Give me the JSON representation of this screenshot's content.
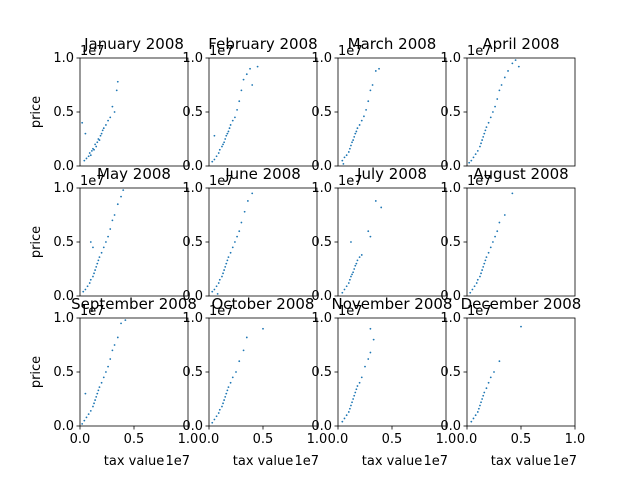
{
  "chart_data": {
    "type": "scatter",
    "layout": "3x4 small multiples",
    "point_color": "#1f77b4",
    "axis_ranges": {
      "xlim": [
        0,
        1
      ],
      "ylim": [
        0,
        1
      ],
      "scale_factor_label": "1e7"
    },
    "xticks": [
      "0.0",
      "0.5",
      "1.0"
    ],
    "yticks": [
      "0.0",
      "0.5",
      "1.0"
    ],
    "xlabel": "tax value",
    "ylabel": "price",
    "grid": false,
    "legend": "none",
    "panels": [
      {
        "title": "January 2008",
        "points": [
          [
            0.04,
            0.05
          ],
          [
            0.06,
            0.07
          ],
          [
            0.08,
            0.09
          ],
          [
            0.09,
            0.12
          ],
          [
            0.1,
            0.1
          ],
          [
            0.11,
            0.14
          ],
          [
            0.12,
            0.16
          ],
          [
            0.13,
            0.15
          ],
          [
            0.14,
            0.2
          ],
          [
            0.15,
            0.18
          ],
          [
            0.16,
            0.22
          ],
          [
            0.17,
            0.25
          ],
          [
            0.18,
            0.24
          ],
          [
            0.19,
            0.28
          ],
          [
            0.2,
            0.3
          ],
          [
            0.21,
            0.33
          ],
          [
            0.22,
            0.35
          ],
          [
            0.24,
            0.38
          ],
          [
            0.26,
            0.42
          ],
          [
            0.28,
            0.45
          ],
          [
            0.3,
            0.55
          ],
          [
            0.32,
            0.5
          ],
          [
            0.34,
            0.7
          ],
          [
            0.35,
            0.78
          ],
          [
            0.02,
            0.4
          ],
          [
            0.05,
            0.3
          ]
        ]
      },
      {
        "title": "February 2008",
        "points": [
          [
            0.03,
            0.04
          ],
          [
            0.05,
            0.06
          ],
          [
            0.07,
            0.09
          ],
          [
            0.09,
            0.12
          ],
          [
            0.1,
            0.15
          ],
          [
            0.12,
            0.18
          ],
          [
            0.13,
            0.2
          ],
          [
            0.14,
            0.22
          ],
          [
            0.15,
            0.25
          ],
          [
            0.16,
            0.28
          ],
          [
            0.17,
            0.3
          ],
          [
            0.18,
            0.32
          ],
          [
            0.19,
            0.35
          ],
          [
            0.2,
            0.38
          ],
          [
            0.22,
            0.42
          ],
          [
            0.24,
            0.45
          ],
          [
            0.26,
            0.52
          ],
          [
            0.28,
            0.6
          ],
          [
            0.3,
            0.7
          ],
          [
            0.32,
            0.8
          ],
          [
            0.35,
            0.85
          ],
          [
            0.38,
            0.9
          ],
          [
            0.4,
            0.75
          ],
          [
            0.45,
            0.92
          ],
          [
            0.05,
            0.28
          ]
        ]
      },
      {
        "title": "March 2008",
        "points": [
          [
            0.04,
            0.05
          ],
          [
            0.06,
            0.08
          ],
          [
            0.08,
            0.1
          ],
          [
            0.1,
            0.13
          ],
          [
            0.11,
            0.16
          ],
          [
            0.12,
            0.19
          ],
          [
            0.13,
            0.22
          ],
          [
            0.14,
            0.24
          ],
          [
            0.15,
            0.27
          ],
          [
            0.16,
            0.3
          ],
          [
            0.17,
            0.32
          ],
          [
            0.18,
            0.35
          ],
          [
            0.2,
            0.38
          ],
          [
            0.22,
            0.42
          ],
          [
            0.24,
            0.46
          ],
          [
            0.26,
            0.52
          ],
          [
            0.28,
            0.6
          ],
          [
            0.3,
            0.7
          ],
          [
            0.32,
            0.75
          ],
          [
            0.35,
            0.88
          ],
          [
            0.38,
            0.9
          ],
          [
            0.05,
            0.02
          ]
        ]
      },
      {
        "title": "April 2008",
        "points": [
          [
            0.02,
            0.03
          ],
          [
            0.04,
            0.05
          ],
          [
            0.06,
            0.08
          ],
          [
            0.08,
            0.11
          ],
          [
            0.1,
            0.14
          ],
          [
            0.12,
            0.18
          ],
          [
            0.13,
            0.21
          ],
          [
            0.14,
            0.24
          ],
          [
            0.15,
            0.27
          ],
          [
            0.16,
            0.3
          ],
          [
            0.17,
            0.33
          ],
          [
            0.18,
            0.36
          ],
          [
            0.2,
            0.4
          ],
          [
            0.22,
            0.45
          ],
          [
            0.24,
            0.5
          ],
          [
            0.26,
            0.55
          ],
          [
            0.28,
            0.62
          ],
          [
            0.3,
            0.7
          ],
          [
            0.32,
            0.75
          ],
          [
            0.35,
            0.82
          ],
          [
            0.38,
            0.88
          ],
          [
            0.42,
            0.95
          ],
          [
            0.45,
            0.98
          ],
          [
            0.48,
            0.92
          ]
        ]
      },
      {
        "title": "May 2008",
        "points": [
          [
            0.03,
            0.04
          ],
          [
            0.05,
            0.06
          ],
          [
            0.07,
            0.09
          ],
          [
            0.09,
            0.12
          ],
          [
            0.1,
            0.15
          ],
          [
            0.12,
            0.18
          ],
          [
            0.13,
            0.21
          ],
          [
            0.14,
            0.24
          ],
          [
            0.15,
            0.27
          ],
          [
            0.16,
            0.3
          ],
          [
            0.17,
            0.33
          ],
          [
            0.18,
            0.36
          ],
          [
            0.2,
            0.4
          ],
          [
            0.22,
            0.45
          ],
          [
            0.24,
            0.5
          ],
          [
            0.26,
            0.55
          ],
          [
            0.28,
            0.62
          ],
          [
            0.3,
            0.7
          ],
          [
            0.32,
            0.75
          ],
          [
            0.35,
            0.85
          ],
          [
            0.38,
            0.92
          ],
          [
            0.4,
            0.98
          ],
          [
            0.1,
            0.5
          ],
          [
            0.12,
            0.45
          ]
        ]
      },
      {
        "title": "June 2008",
        "points": [
          [
            0.03,
            0.04
          ],
          [
            0.05,
            0.06
          ],
          [
            0.07,
            0.09
          ],
          [
            0.09,
            0.12
          ],
          [
            0.1,
            0.15
          ],
          [
            0.12,
            0.18
          ],
          [
            0.13,
            0.21
          ],
          [
            0.14,
            0.24
          ],
          [
            0.15,
            0.27
          ],
          [
            0.16,
            0.3
          ],
          [
            0.17,
            0.33
          ],
          [
            0.18,
            0.36
          ],
          [
            0.2,
            0.4
          ],
          [
            0.22,
            0.45
          ],
          [
            0.24,
            0.5
          ],
          [
            0.26,
            0.55
          ],
          [
            0.28,
            0.6
          ],
          [
            0.3,
            0.68
          ],
          [
            0.33,
            0.78
          ],
          [
            0.36,
            0.88
          ],
          [
            0.4,
            0.95
          ],
          [
            0.08,
            0.02
          ]
        ]
      },
      {
        "title": "July 2008",
        "points": [
          [
            0.04,
            0.03
          ],
          [
            0.06,
            0.06
          ],
          [
            0.08,
            0.09
          ],
          [
            0.1,
            0.12
          ],
          [
            0.11,
            0.15
          ],
          [
            0.12,
            0.18
          ],
          [
            0.13,
            0.2
          ],
          [
            0.14,
            0.22
          ],
          [
            0.15,
            0.25
          ],
          [
            0.16,
            0.28
          ],
          [
            0.17,
            0.3
          ],
          [
            0.18,
            0.33
          ],
          [
            0.2,
            0.36
          ],
          [
            0.22,
            0.38
          ],
          [
            0.12,
            0.5
          ],
          [
            0.28,
            0.6
          ],
          [
            0.3,
            0.55
          ],
          [
            0.35,
            0.88
          ],
          [
            0.4,
            0.82
          ]
        ]
      },
      {
        "title": "August 2008",
        "points": [
          [
            0.03,
            0.03
          ],
          [
            0.05,
            0.06
          ],
          [
            0.07,
            0.09
          ],
          [
            0.09,
            0.12
          ],
          [
            0.1,
            0.15
          ],
          [
            0.12,
            0.18
          ],
          [
            0.13,
            0.21
          ],
          [
            0.14,
            0.24
          ],
          [
            0.15,
            0.27
          ],
          [
            0.16,
            0.3
          ],
          [
            0.17,
            0.33
          ],
          [
            0.18,
            0.36
          ],
          [
            0.2,
            0.4
          ],
          [
            0.22,
            0.45
          ],
          [
            0.24,
            0.5
          ],
          [
            0.26,
            0.55
          ],
          [
            0.28,
            0.6
          ],
          [
            0.3,
            0.68
          ],
          [
            0.35,
            0.75
          ],
          [
            0.42,
            0.95
          ]
        ]
      },
      {
        "title": "September 2008",
        "points": [
          [
            0.02,
            0.02
          ],
          [
            0.04,
            0.05
          ],
          [
            0.06,
            0.08
          ],
          [
            0.08,
            0.11
          ],
          [
            0.1,
            0.14
          ],
          [
            0.12,
            0.18
          ],
          [
            0.13,
            0.21
          ],
          [
            0.14,
            0.24
          ],
          [
            0.15,
            0.27
          ],
          [
            0.16,
            0.3
          ],
          [
            0.17,
            0.33
          ],
          [
            0.18,
            0.36
          ],
          [
            0.2,
            0.4
          ],
          [
            0.22,
            0.45
          ],
          [
            0.24,
            0.5
          ],
          [
            0.26,
            0.55
          ],
          [
            0.28,
            0.62
          ],
          [
            0.3,
            0.7
          ],
          [
            0.32,
            0.75
          ],
          [
            0.35,
            0.82
          ],
          [
            0.38,
            0.95
          ],
          [
            0.42,
            0.98
          ],
          [
            0.05,
            0.3
          ]
        ]
      },
      {
        "title": "October 2008",
        "points": [
          [
            0.03,
            0.03
          ],
          [
            0.05,
            0.06
          ],
          [
            0.07,
            0.09
          ],
          [
            0.09,
            0.12
          ],
          [
            0.1,
            0.15
          ],
          [
            0.12,
            0.18
          ],
          [
            0.13,
            0.21
          ],
          [
            0.14,
            0.24
          ],
          [
            0.15,
            0.27
          ],
          [
            0.16,
            0.3
          ],
          [
            0.17,
            0.33
          ],
          [
            0.18,
            0.36
          ],
          [
            0.2,
            0.4
          ],
          [
            0.22,
            0.45
          ],
          [
            0.25,
            0.5
          ],
          [
            0.28,
            0.6
          ],
          [
            0.32,
            0.7
          ],
          [
            0.35,
            0.82
          ],
          [
            0.5,
            0.9
          ]
        ]
      },
      {
        "title": "November 2008",
        "points": [
          [
            0.04,
            0.04
          ],
          [
            0.06,
            0.07
          ],
          [
            0.08,
            0.1
          ],
          [
            0.1,
            0.13
          ],
          [
            0.11,
            0.16
          ],
          [
            0.12,
            0.19
          ],
          [
            0.13,
            0.22
          ],
          [
            0.14,
            0.25
          ],
          [
            0.15,
            0.28
          ],
          [
            0.16,
            0.31
          ],
          [
            0.17,
            0.34
          ],
          [
            0.18,
            0.37
          ],
          [
            0.2,
            0.4
          ],
          [
            0.22,
            0.45
          ],
          [
            0.25,
            0.55
          ],
          [
            0.28,
            0.62
          ],
          [
            0.3,
            0.68
          ],
          [
            0.33,
            0.8
          ],
          [
            0.3,
            0.9
          ]
        ]
      },
      {
        "title": "December 2008",
        "points": [
          [
            0.04,
            0.04
          ],
          [
            0.06,
            0.07
          ],
          [
            0.08,
            0.1
          ],
          [
            0.1,
            0.13
          ],
          [
            0.11,
            0.16
          ],
          [
            0.12,
            0.19
          ],
          [
            0.13,
            0.22
          ],
          [
            0.14,
            0.25
          ],
          [
            0.15,
            0.28
          ],
          [
            0.16,
            0.31
          ],
          [
            0.18,
            0.35
          ],
          [
            0.2,
            0.4
          ],
          [
            0.22,
            0.45
          ],
          [
            0.25,
            0.5
          ],
          [
            0.3,
            0.6
          ],
          [
            0.5,
            0.92
          ]
        ]
      }
    ]
  }
}
